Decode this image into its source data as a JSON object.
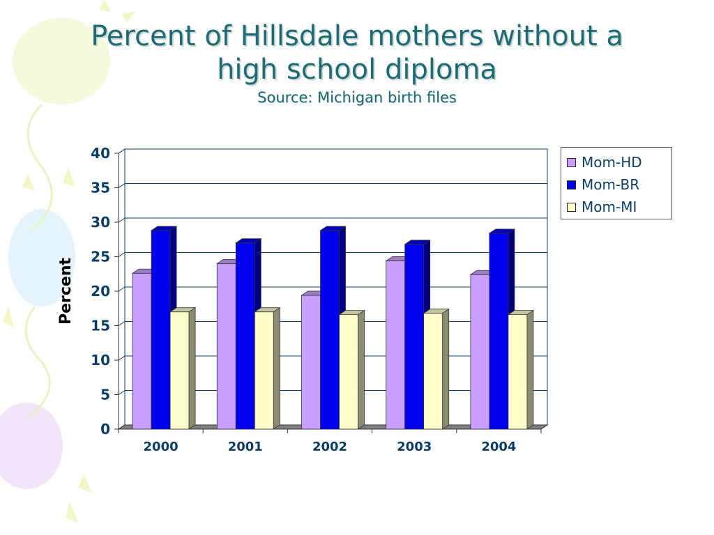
{
  "slide": {
    "title_line1": "Percent of Hillsdale mothers without a",
    "title_line2": "high school diploma",
    "subtitle": "Source: Michigan birth files"
  },
  "chart_data": {
    "type": "bar",
    "ylabel": "Percent",
    "ylim": [
      0,
      40
    ],
    "yticks": [
      0,
      5,
      10,
      15,
      20,
      25,
      30,
      35,
      40
    ],
    "grid": true,
    "legend_position": "top-right",
    "categories": [
      "2000",
      "2001",
      "2002",
      "2003",
      "2004"
    ],
    "series": [
      {
        "name": "Mom-HD",
        "color": "#c9a0ff",
        "values": [
          22.6,
          24.0,
          19.4,
          24.4,
          22.4
        ]
      },
      {
        "name": "Mom-BR",
        "color": "#0000ee",
        "values": [
          28.8,
          27.0,
          28.8,
          26.8,
          28.4
        ]
      },
      {
        "name": "Mom-MI",
        "color": "#ffffcc",
        "values": [
          17.0,
          17.0,
          16.6,
          16.8,
          16.6
        ]
      }
    ]
  }
}
